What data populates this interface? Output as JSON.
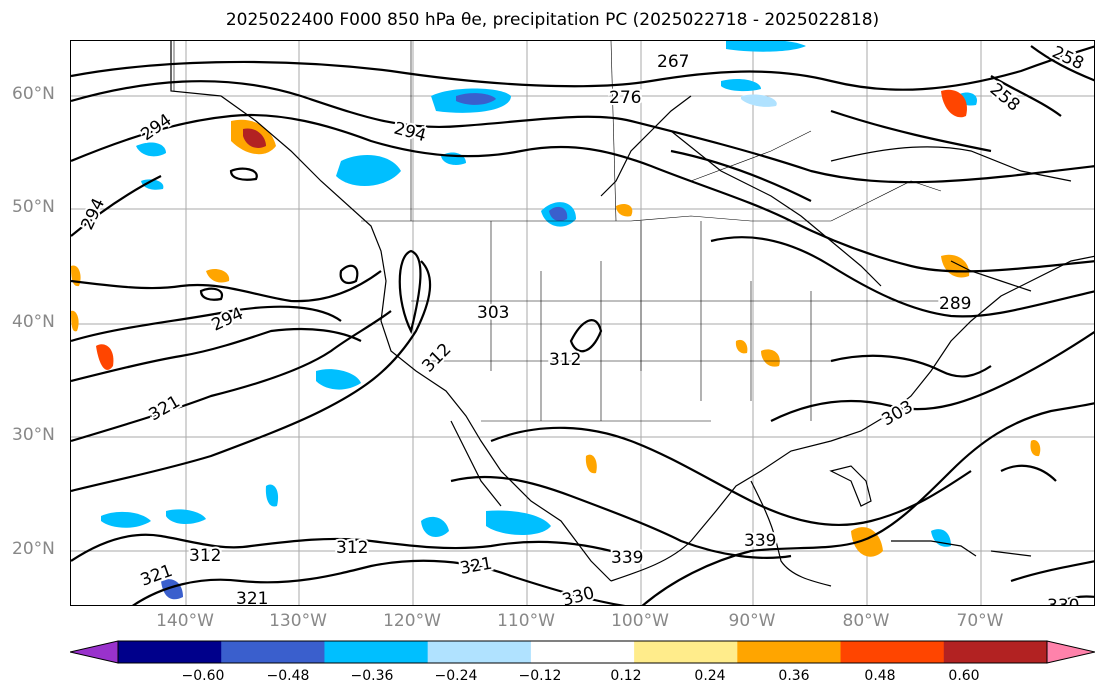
{
  "figure": {
    "title": "2025022400 F000 850 hPa θe, precipitation PC (2025022718 - 2025022818)"
  },
  "axes": {
    "lat_labels": [
      "60°N",
      "50°N",
      "40°N",
      "30°N",
      "20°N"
    ],
    "lon_labels": [
      "140°W",
      "130°W",
      "120°W",
      "110°W",
      "100°W",
      "90°W",
      "80°W",
      "70°W"
    ]
  },
  "contour_labels": [
    "267",
    "276",
    "258",
    "258",
    "294",
    "294",
    "294",
    "294",
    "303",
    "312",
    "312",
    "303",
    "289",
    "321",
    "312",
    "312",
    "321",
    "321",
    "321",
    "339",
    "339",
    "330",
    "330"
  ],
  "colorbar": {
    "ticks": [
      "−0.60",
      "−0.48",
      "−0.36",
      "−0.24",
      "−0.12",
      "0.12",
      "0.24",
      "0.36",
      "0.48",
      "0.60"
    ],
    "colors": [
      "#9932cc",
      "#00008b",
      "#3a5fcd",
      "#00bfff",
      "#b0e2ff",
      "#ffffff",
      "#ffec8b",
      "#ffa500",
      "#ff4500",
      "#b22222",
      "#ff82ab"
    ]
  },
  "colors": {
    "contour": "#000000",
    "coast": "#000000",
    "grid": "#aaaaaa",
    "axis_label": "#888888"
  }
}
